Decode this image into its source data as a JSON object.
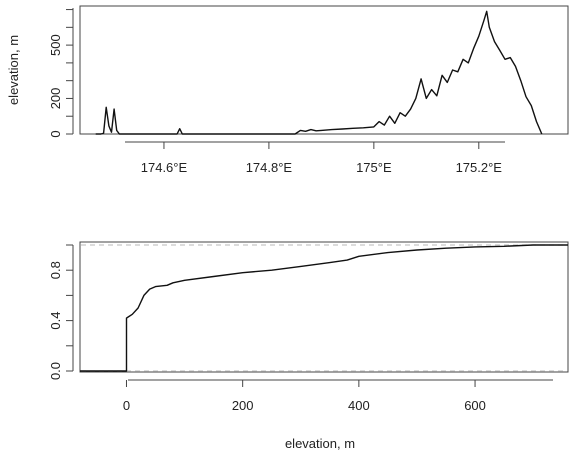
{
  "chart_data": [
    {
      "type": "line",
      "title": "",
      "xlabel": "",
      "ylabel": "elevation, m",
      "xlim": [
        174.44,
        175.37
      ],
      "ylim": [
        0,
        720
      ],
      "x_ticks": [
        174.6,
        174.8,
        175.0,
        175.2
      ],
      "x_tick_labels": [
        "174.6°E",
        "174.8°E",
        "175°E",
        "175.2°E"
      ],
      "y_ticks": [
        0,
        100,
        200,
        300,
        400,
        500,
        600,
        700
      ],
      "y_tick_labels": [
        "0",
        "",
        "200",
        "",
        "",
        "500",
        "",
        ""
      ],
      "grid": false,
      "line_color": "#111111",
      "series": [
        {
          "x": [
            174.47,
            174.48,
            174.485,
            174.49,
            174.495,
            174.5,
            174.505,
            174.51,
            174.515,
            174.52,
            174.53,
            174.55,
            174.6,
            174.625,
            174.63,
            174.635,
            174.64,
            174.7,
            174.75,
            174.8,
            174.85,
            174.86,
            174.87,
            174.88,
            174.89,
            174.9,
            174.92,
            174.94,
            174.96,
            174.98,
            175.0,
            175.01,
            175.02,
            175.03,
            175.04,
            175.05,
            175.06,
            175.07,
            175.08,
            175.09,
            175.1,
            175.11,
            175.12,
            175.13,
            175.14,
            175.15,
            175.16,
            175.17,
            175.18,
            175.19,
            175.2,
            175.21,
            175.215,
            175.22,
            175.23,
            175.24,
            175.25,
            175.26,
            175.27,
            175.28,
            175.29,
            175.3,
            175.31,
            175.32
          ],
          "y": [
            0,
            0,
            5,
            150,
            45,
            10,
            140,
            20,
            0,
            0,
            0,
            0,
            0,
            0,
            30,
            0,
            0,
            0,
            0,
            0,
            0,
            20,
            15,
            25,
            18,
            20,
            25,
            28,
            32,
            35,
            40,
            70,
            50,
            100,
            60,
            120,
            100,
            140,
            200,
            310,
            200,
            250,
            215,
            330,
            290,
            360,
            350,
            420,
            400,
            480,
            550,
            640,
            690,
            600,
            520,
            470,
            420,
            430,
            380,
            300,
            210,
            160,
            70,
            0
          ]
        }
      ]
    },
    {
      "type": "line",
      "title": "",
      "xlabel": "elevation, m",
      "ylabel": "",
      "xlim": [
        -80,
        760
      ],
      "ylim": [
        0,
        1
      ],
      "x_ticks": [
        0,
        200,
        400,
        600
      ],
      "x_tick_labels": [
        "0",
        "200",
        "400",
        "600"
      ],
      "y_ticks": [
        0,
        0.2,
        0.4,
        0.6,
        0.8,
        1.0
      ],
      "y_tick_labels": [
        "0.0",
        "",
        "0.4",
        "",
        "0.8",
        ""
      ],
      "reference_lines": [
        0,
        1
      ],
      "grid": false,
      "line_color": "#111111",
      "series": [
        {
          "x": [
            -80,
            0,
            0,
            10,
            20,
            30,
            40,
            50,
            60,
            70,
            80,
            100,
            150,
            200,
            250,
            300,
            350,
            380,
            400,
            450,
            500,
            550,
            600,
            650,
            700,
            760
          ],
          "y": [
            0,
            0,
            0.42,
            0.45,
            0.5,
            0.6,
            0.65,
            0.67,
            0.675,
            0.68,
            0.7,
            0.72,
            0.75,
            0.78,
            0.8,
            0.83,
            0.86,
            0.88,
            0.91,
            0.94,
            0.96,
            0.975,
            0.985,
            0.99,
            1.0,
            1.0
          ]
        }
      ]
    }
  ]
}
